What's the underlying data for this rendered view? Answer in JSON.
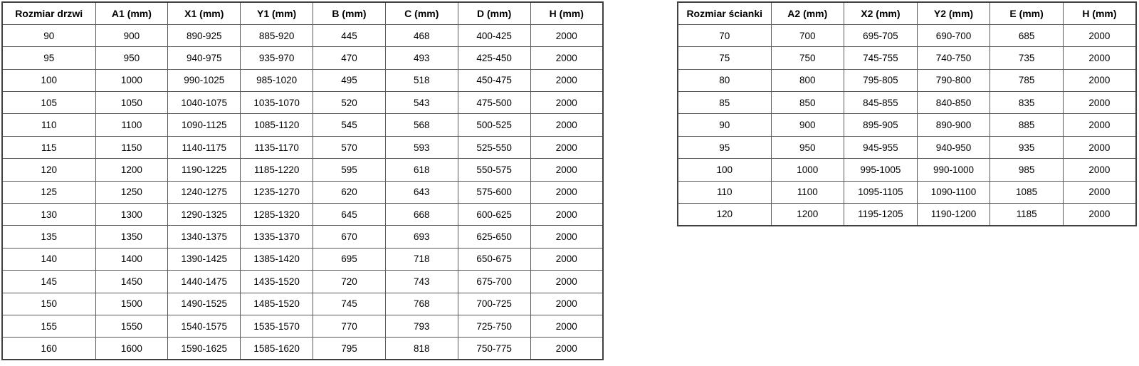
{
  "page": {
    "background": "#ffffff",
    "text_color": "#000000",
    "border_outer_color": "#404040",
    "border_inner_color": "#595959"
  },
  "tables": [
    {
      "name": "door-sizes",
      "headers": [
        "Rozmiar drzwi",
        "A1 (mm)",
        "X1 (mm)",
        "Y1 (mm)",
        "B (mm)",
        "C (mm)",
        "D (mm)",
        "H (mm)"
      ],
      "rows": [
        [
          "90",
          "900",
          "890-925",
          "885-920",
          "445",
          "468",
          "400-425",
          "2000"
        ],
        [
          "95",
          "950",
          "940-975",
          "935-970",
          "470",
          "493",
          "425-450",
          "2000"
        ],
        [
          "100",
          "1000",
          "990-1025",
          "985-1020",
          "495",
          "518",
          "450-475",
          "2000"
        ],
        [
          "105",
          "1050",
          "1040-1075",
          "1035-1070",
          "520",
          "543",
          "475-500",
          "2000"
        ],
        [
          "110",
          "1100",
          "1090-1125",
          "1085-1120",
          "545",
          "568",
          "500-525",
          "2000"
        ],
        [
          "115",
          "1150",
          "1140-1175",
          "1135-1170",
          "570",
          "593",
          "525-550",
          "2000"
        ],
        [
          "120",
          "1200",
          "1190-1225",
          "1185-1220",
          "595",
          "618",
          "550-575",
          "2000"
        ],
        [
          "125",
          "1250",
          "1240-1275",
          "1235-1270",
          "620",
          "643",
          "575-600",
          "2000"
        ],
        [
          "130",
          "1300",
          "1290-1325",
          "1285-1320",
          "645",
          "668",
          "600-625",
          "2000"
        ],
        [
          "135",
          "1350",
          "1340-1375",
          "1335-1370",
          "670",
          "693",
          "625-650",
          "2000"
        ],
        [
          "140",
          "1400",
          "1390-1425",
          "1385-1420",
          "695",
          "718",
          "650-675",
          "2000"
        ],
        [
          "145",
          "1450",
          "1440-1475",
          "1435-1520",
          "720",
          "743",
          "675-700",
          "2000"
        ],
        [
          "150",
          "1500",
          "1490-1525",
          "1485-1520",
          "745",
          "768",
          "700-725",
          "2000"
        ],
        [
          "155",
          "1550",
          "1540-1575",
          "1535-1570",
          "770",
          "793",
          "725-750",
          "2000"
        ],
        [
          "160",
          "1600",
          "1590-1625",
          "1585-1620",
          "795",
          "818",
          "750-775",
          "2000"
        ]
      ]
    },
    {
      "name": "wall-sizes",
      "headers": [
        "Rozmiar ścianki",
        "A2 (mm)",
        "X2 (mm)",
        "Y2 (mm)",
        "E (mm)",
        "H (mm)"
      ],
      "rows": [
        [
          "70",
          "700",
          "695-705",
          "690-700",
          "685",
          "2000"
        ],
        [
          "75",
          "750",
          "745-755",
          "740-750",
          "735",
          "2000"
        ],
        [
          "80",
          "800",
          "795-805",
          "790-800",
          "785",
          "2000"
        ],
        [
          "85",
          "850",
          "845-855",
          "840-850",
          "835",
          "2000"
        ],
        [
          "90",
          "900",
          "895-905",
          "890-900",
          "885",
          "2000"
        ],
        [
          "95",
          "950",
          "945-955",
          "940-950",
          "935",
          "2000"
        ],
        [
          "100",
          "1000",
          "995-1005",
          "990-1000",
          "985",
          "2000"
        ],
        [
          "110",
          "1100",
          "1095-1105",
          "1090-1100",
          "1085",
          "2000"
        ],
        [
          "120",
          "1200",
          "1195-1205",
          "1190-1200",
          "1185",
          "2000"
        ]
      ]
    }
  ]
}
